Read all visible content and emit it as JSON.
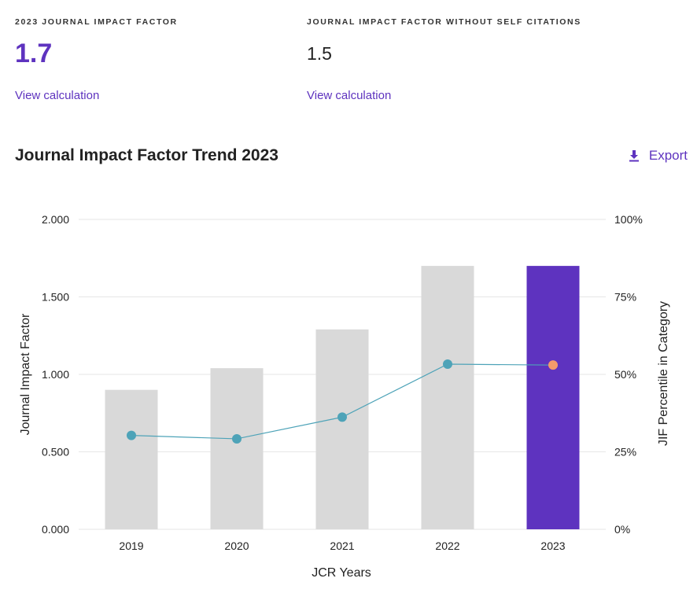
{
  "metrics": {
    "jif": {
      "label": "2023 JOURNAL IMPACT FACTOR",
      "value": "1.7",
      "link": "View calculation"
    },
    "jif_no_self": {
      "label": "JOURNAL IMPACT FACTOR WITHOUT SELF CITATIONS",
      "value": "1.5",
      "link": "View calculation"
    }
  },
  "trend": {
    "title": "Journal Impact Factor Trend 2023",
    "export_label": "Export"
  },
  "colors": {
    "accent": "#5e33bf",
    "bar": "#d9d9d9",
    "line": "#4ea3b8",
    "highlight_point": "#f59a6b"
  },
  "chart_data": {
    "type": "bar",
    "categories": [
      "2019",
      "2020",
      "2021",
      "2022",
      "2023"
    ],
    "series": [
      {
        "values": [
          0.9,
          1.04,
          1.29,
          1.7,
          1.7
        ],
        "axis": "left",
        "highlight_index": 4
      },
      {
        "type": "line",
        "values": [
          30.3,
          29.2,
          36.2,
          53.3,
          53.0
        ],
        "axis": "right"
      }
    ],
    "xlabel": "JCR Years",
    "ylabel": "Journal Impact Factor",
    "y2label": "JIF Percentile in Category",
    "ylim": [
      0,
      2
    ],
    "y2lim": [
      0,
      100
    ],
    "yticks": [
      "0.000",
      "0.500",
      "1.000",
      "1.500",
      "2.000"
    ],
    "y2ticks": [
      "0%",
      "25%",
      "50%",
      "75%",
      "100%"
    ],
    "grid": true,
    "legend": "none"
  }
}
